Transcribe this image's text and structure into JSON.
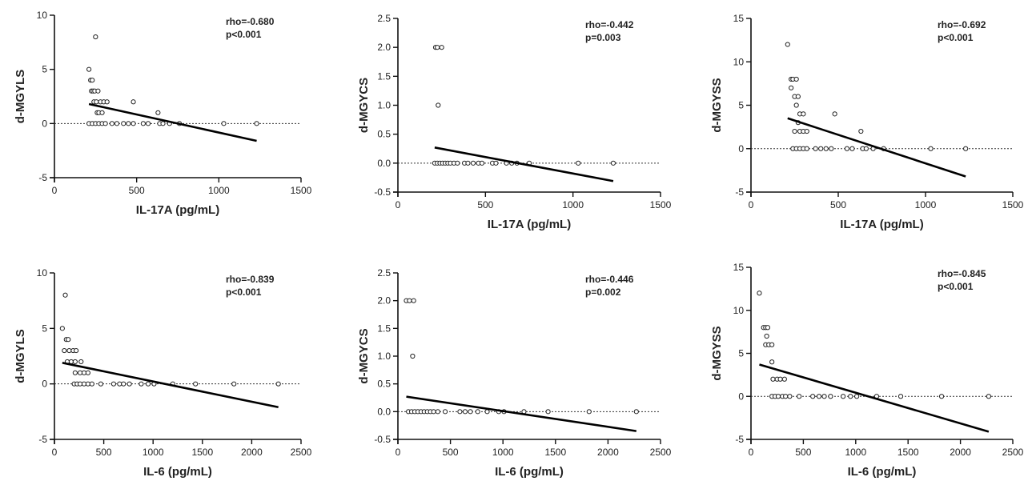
{
  "chart_data": [
    {
      "type": "scatter",
      "xlabel": "IL-17A (pg/mL)",
      "ylabel": "d-MGYLS",
      "xlim": [
        0,
        1500
      ],
      "ylim": [
        -5,
        10
      ],
      "xticks": [
        0,
        500,
        1000,
        1500
      ],
      "yticks": [
        -5,
        0,
        5,
        10
      ],
      "annotation": [
        "rho=-0.680",
        "p<0.001"
      ],
      "reference_line_y": 0,
      "points": [
        [
          210,
          5
        ],
        [
          220,
          4
        ],
        [
          225,
          3
        ],
        [
          230,
          4
        ],
        [
          235,
          3
        ],
        [
          240,
          2
        ],
        [
          245,
          3
        ],
        [
          250,
          8
        ],
        [
          255,
          2
        ],
        [
          260,
          1
        ],
        [
          265,
          3
        ],
        [
          270,
          1
        ],
        [
          280,
          2
        ],
        [
          290,
          1
        ],
        [
          300,
          2
        ],
        [
          320,
          2
        ],
        [
          480,
          2
        ],
        [
          630,
          1
        ],
        [
          210,
          0
        ],
        [
          230,
          0
        ],
        [
          250,
          0
        ],
        [
          270,
          0
        ],
        [
          290,
          0
        ],
        [
          310,
          0
        ],
        [
          350,
          0
        ],
        [
          380,
          0
        ],
        [
          420,
          0
        ],
        [
          450,
          0
        ],
        [
          480,
          0
        ],
        [
          540,
          0
        ],
        [
          570,
          0
        ],
        [
          640,
          0
        ],
        [
          660,
          0
        ],
        [
          700,
          0
        ],
        [
          760,
          0
        ],
        [
          1030,
          0
        ],
        [
          1230,
          0
        ]
      ],
      "fit": [
        [
          210,
          1.8
        ],
        [
          1230,
          -1.6
        ]
      ]
    },
    {
      "type": "scatter",
      "xlabel": "IL-17A (pg/mL)",
      "ylabel": "d-MGYCS",
      "xlim": [
        0,
        1500
      ],
      "ylim": [
        -0.5,
        2.5
      ],
      "xticks": [
        0,
        500,
        1000,
        1500
      ],
      "yticks": [
        -0.5,
        0.0,
        0.5,
        1.0,
        1.5,
        2.0,
        2.5
      ],
      "annotation": [
        "rho=-0.442",
        "p=0.003"
      ],
      "reference_line_y": 0,
      "points": [
        [
          215,
          2
        ],
        [
          225,
          2
        ],
        [
          250,
          2
        ],
        [
          230,
          1
        ],
        [
          210,
          0
        ],
        [
          225,
          0
        ],
        [
          240,
          0
        ],
        [
          255,
          0
        ],
        [
          270,
          0
        ],
        [
          285,
          0
        ],
        [
          300,
          0
        ],
        [
          320,
          0
        ],
        [
          340,
          0
        ],
        [
          380,
          0
        ],
        [
          400,
          0
        ],
        [
          430,
          0
        ],
        [
          460,
          0
        ],
        [
          480,
          0
        ],
        [
          540,
          0
        ],
        [
          560,
          0
        ],
        [
          620,
          0
        ],
        [
          650,
          0
        ],
        [
          680,
          0
        ],
        [
          750,
          0
        ],
        [
          1030,
          0
        ],
        [
          1230,
          0
        ]
      ],
      "fit": [
        [
          210,
          0.27
        ],
        [
          1230,
          -0.31
        ]
      ]
    },
    {
      "type": "scatter",
      "xlabel": "IL-17A (pg/mL)",
      "ylabel": "d-MGYSS",
      "xlim": [
        0,
        1500
      ],
      "ylim": [
        -5,
        15
      ],
      "xticks": [
        0,
        500,
        1000,
        1500
      ],
      "yticks": [
        -5,
        0,
        5,
        10,
        15
      ],
      "annotation": [
        "rho=-0.692",
        "p<0.001"
      ],
      "reference_line_y": 0,
      "points": [
        [
          210,
          12
        ],
        [
          230,
          8
        ],
        [
          240,
          8
        ],
        [
          260,
          8
        ],
        [
          230,
          7
        ],
        [
          250,
          6
        ],
        [
          270,
          6
        ],
        [
          260,
          5
        ],
        [
          280,
          4
        ],
        [
          300,
          4
        ],
        [
          270,
          3
        ],
        [
          250,
          2
        ],
        [
          280,
          2
        ],
        [
          300,
          2
        ],
        [
          320,
          2
        ],
        [
          480,
          4
        ],
        [
          630,
          2
        ],
        [
          240,
          0
        ],
        [
          260,
          0
        ],
        [
          280,
          0
        ],
        [
          300,
          0
        ],
        [
          320,
          0
        ],
        [
          370,
          0
        ],
        [
          400,
          0
        ],
        [
          430,
          0
        ],
        [
          460,
          0
        ],
        [
          550,
          0
        ],
        [
          580,
          0
        ],
        [
          640,
          0
        ],
        [
          660,
          0
        ],
        [
          700,
          0
        ],
        [
          760,
          0
        ],
        [
          1030,
          0
        ],
        [
          1230,
          0
        ]
      ],
      "fit": [
        [
          210,
          3.5
        ],
        [
          1230,
          -3.2
        ]
      ]
    },
    {
      "type": "scatter",
      "xlabel": "IL-6 (pg/mL)",
      "ylabel": "d-MGYLS",
      "xlim": [
        0,
        2500
      ],
      "ylim": [
        -5,
        10
      ],
      "xticks": [
        0,
        500,
        1000,
        1500,
        2000,
        2500
      ],
      "yticks": [
        -5,
        0,
        5,
        10
      ],
      "annotation": [
        "rho=-0.839",
        "p<0.001"
      ],
      "reference_line_y": 0,
      "points": [
        [
          80,
          5
        ],
        [
          110,
          8
        ],
        [
          120,
          4
        ],
        [
          140,
          4
        ],
        [
          100,
          3
        ],
        [
          150,
          3
        ],
        [
          190,
          3
        ],
        [
          220,
          3
        ],
        [
          130,
          2
        ],
        [
          170,
          2
        ],
        [
          210,
          2
        ],
        [
          270,
          2
        ],
        [
          210,
          1
        ],
        [
          260,
          1
        ],
        [
          300,
          1
        ],
        [
          340,
          1
        ],
        [
          200,
          0
        ],
        [
          230,
          0
        ],
        [
          260,
          0
        ],
        [
          300,
          0
        ],
        [
          340,
          0
        ],
        [
          380,
          0
        ],
        [
          470,
          0
        ],
        [
          600,
          0
        ],
        [
          660,
          0
        ],
        [
          700,
          0
        ],
        [
          760,
          0
        ],
        [
          880,
          0
        ],
        [
          950,
          0
        ],
        [
          1010,
          0
        ],
        [
          1200,
          0
        ],
        [
          1430,
          0
        ],
        [
          1820,
          0
        ],
        [
          2270,
          0
        ]
      ],
      "fit": [
        [
          80,
          1.9
        ],
        [
          2270,
          -2.1
        ]
      ]
    },
    {
      "type": "scatter",
      "xlabel": "IL-6 (pg/mL)",
      "ylabel": "d-MGYCS",
      "xlim": [
        0,
        2500
      ],
      "ylim": [
        -0.5,
        2.5
      ],
      "xticks": [
        0,
        500,
        1000,
        1500,
        2000,
        2500
      ],
      "yticks": [
        -0.5,
        0.0,
        0.5,
        1.0,
        1.5,
        2.0,
        2.5
      ],
      "annotation": [
        "rho=-0.446",
        "p=0.002"
      ],
      "reference_line_y": 0,
      "points": [
        [
          80,
          2
        ],
        [
          110,
          2
        ],
        [
          150,
          2
        ],
        [
          140,
          1
        ],
        [
          100,
          0
        ],
        [
          130,
          0
        ],
        [
          160,
          0
        ],
        [
          190,
          0
        ],
        [
          220,
          0
        ],
        [
          250,
          0
        ],
        [
          280,
          0
        ],
        [
          310,
          0
        ],
        [
          340,
          0
        ],
        [
          380,
          0
        ],
        [
          450,
          0
        ],
        [
          590,
          0
        ],
        [
          640,
          0
        ],
        [
          690,
          0
        ],
        [
          760,
          0
        ],
        [
          850,
          0
        ],
        [
          960,
          0
        ],
        [
          1010,
          0
        ],
        [
          1200,
          0
        ],
        [
          1430,
          0
        ],
        [
          1820,
          0
        ],
        [
          2270,
          0
        ]
      ],
      "fit": [
        [
          80,
          0.27
        ],
        [
          2270,
          -0.35
        ]
      ]
    },
    {
      "type": "scatter",
      "xlabel": "IL-6 (pg/mL)",
      "ylabel": "d-MGYSS",
      "xlim": [
        0,
        2500
      ],
      "ylim": [
        -5,
        15
      ],
      "xticks": [
        0,
        500,
        1000,
        1500,
        2000,
        2500
      ],
      "yticks": [
        -5,
        0,
        5,
        10,
        15
      ],
      "annotation": [
        "rho=-0.845",
        "p<0.001"
      ],
      "reference_line_y": 0,
      "points": [
        [
          80,
          12
        ],
        [
          120,
          8
        ],
        [
          140,
          8
        ],
        [
          160,
          8
        ],
        [
          150,
          7
        ],
        [
          140,
          6
        ],
        [
          170,
          6
        ],
        [
          200,
          6
        ],
        [
          200,
          4
        ],
        [
          210,
          2
        ],
        [
          250,
          2
        ],
        [
          280,
          2
        ],
        [
          320,
          2
        ],
        [
          200,
          0
        ],
        [
          230,
          0
        ],
        [
          260,
          0
        ],
        [
          300,
          0
        ],
        [
          330,
          0
        ],
        [
          370,
          0
        ],
        [
          460,
          0
        ],
        [
          590,
          0
        ],
        [
          650,
          0
        ],
        [
          700,
          0
        ],
        [
          760,
          0
        ],
        [
          880,
          0
        ],
        [
          950,
          0
        ],
        [
          1010,
          0
        ],
        [
          1200,
          0
        ],
        [
          1430,
          0
        ],
        [
          1820,
          0
        ],
        [
          2270,
          0
        ]
      ],
      "fit": [
        [
          80,
          3.7
        ],
        [
          2270,
          -4.1
        ]
      ]
    }
  ]
}
